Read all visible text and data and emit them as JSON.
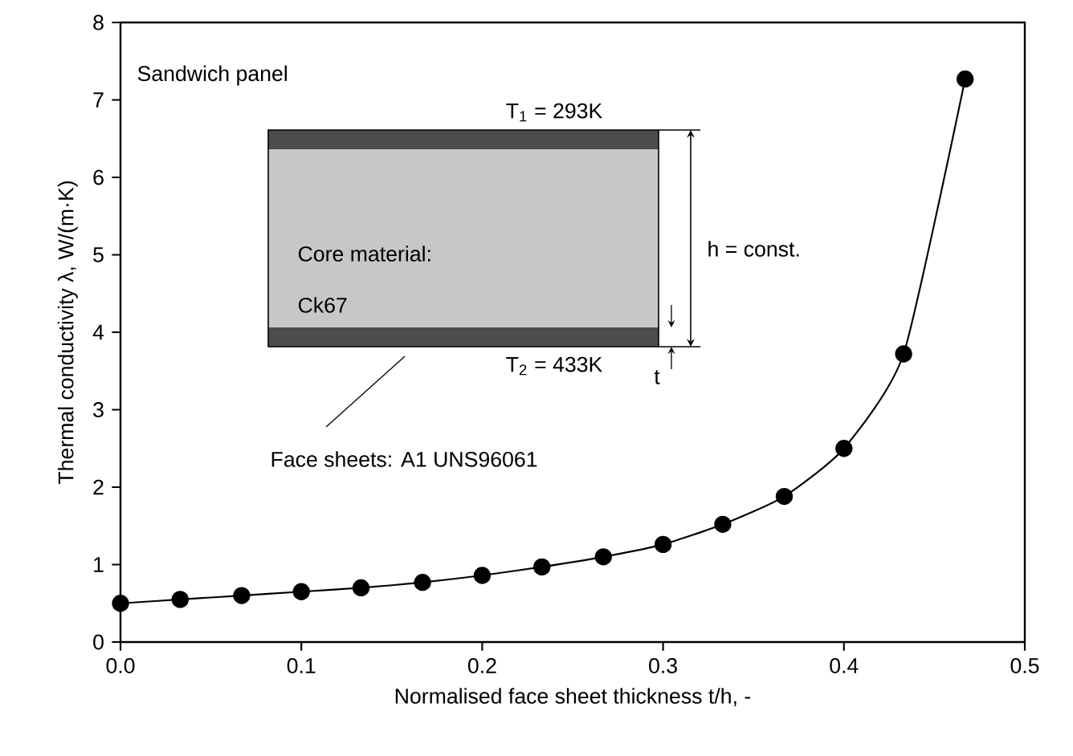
{
  "chart_data": {
    "type": "line",
    "xlabel": "Normalised face sheet thickness t/h, -",
    "ylabel": "Thermal conductivity λ, W/(m·K)",
    "xlim": [
      0,
      0.5
    ],
    "ylim": [
      0,
      8
    ],
    "xticks": [
      {
        "value": 0,
        "label": "0.0"
      },
      {
        "value": 0.1,
        "label": "0.1"
      },
      {
        "value": 0.2,
        "label": "0.2"
      },
      {
        "value": 0.3,
        "label": "0.3"
      },
      {
        "value": 0.4,
        "label": "0.4"
      },
      {
        "value": 0.5,
        "label": "0.5"
      }
    ],
    "yticks": [
      0,
      1,
      2,
      3,
      4,
      5,
      6,
      7,
      8
    ],
    "grid": false,
    "marker": "circle",
    "line_style": "solid",
    "series": [
      {
        "color": "#000000",
        "x": [
          0,
          0.033,
          0.067,
          0.1,
          0.133,
          0.167,
          0.2,
          0.233,
          0.267,
          0.3,
          0.333,
          0.367,
          0.4,
          0.433,
          0.467
        ],
        "values": [
          0.5,
          0.55,
          0.6,
          0.65,
          0.7,
          0.77,
          0.86,
          0.97,
          1.1,
          1.26,
          1.52,
          1.88,
          2.5,
          3.72,
          7.27
        ]
      }
    ],
    "annotations": [
      "Sandwich panel",
      "T$_{1}$ = 293K",
      "Core material:",
      "Ck67",
      "h = const.",
      "T$_{2}$ = 433K",
      "t",
      "Face sheets: A1 UNS96061"
    ]
  }
}
